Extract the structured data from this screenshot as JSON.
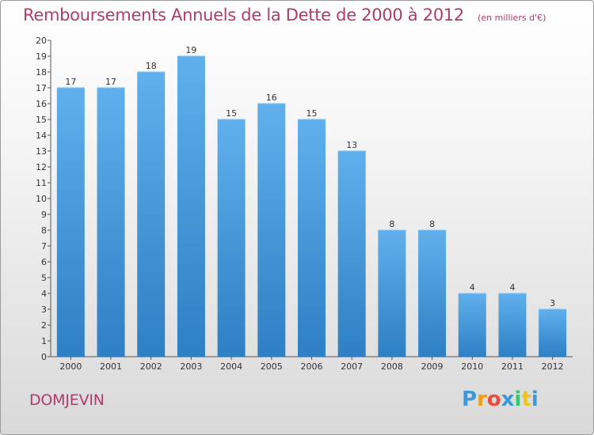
{
  "chart_data": {
    "type": "bar",
    "title": "Remboursements Annuels de la Dette de 2000 à 2012",
    "unit": "(en milliers d'€)",
    "categories": [
      "2000",
      "2001",
      "2002",
      "2003",
      "2004",
      "2005",
      "2006",
      "2007",
      "2008",
      "2009",
      "2010",
      "2011",
      "2012"
    ],
    "values": [
      17,
      17,
      18,
      19,
      15,
      16,
      15,
      13,
      8,
      8,
      4,
      4,
      3
    ],
    "data_labels": [
      "17",
      "17",
      "18",
      "19",
      "15",
      "16",
      "15",
      "13",
      "8",
      "8",
      "4",
      "4",
      "3"
    ],
    "ylim": [
      0,
      20
    ],
    "yticks": [
      "0",
      "1",
      "2",
      "3",
      "4",
      "5",
      "6",
      "7",
      "8",
      "9",
      "10",
      "11",
      "12",
      "13",
      "14",
      "15",
      "16",
      "17",
      "18",
      "19",
      "20"
    ],
    "grid": false,
    "bar_color": "#3d8fd6",
    "bar_color_light": "#5fb0ec"
  },
  "footer": {
    "commune": "DOMJEVIN",
    "logo_letters": [
      "P",
      "r",
      "o",
      "x",
      "i",
      "t",
      "i"
    ],
    "logo_colors": [
      "#3a9ad9",
      "#f39c12",
      "#e74c3c",
      "#3a9ad9",
      "#2ecc71",
      "#f1c40f",
      "#3a9ad9"
    ]
  },
  "colors": {
    "title": "#b03a6b"
  }
}
